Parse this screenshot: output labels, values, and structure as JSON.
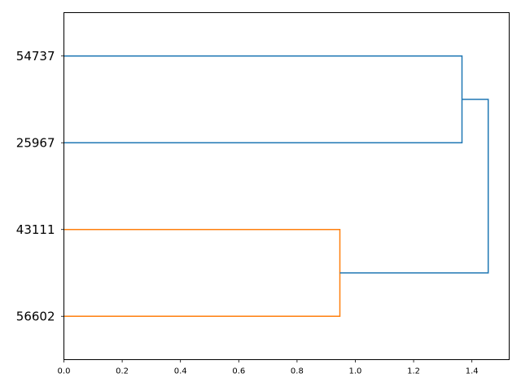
{
  "chart_data": {
    "type": "dendrogram",
    "orientation": "left",
    "leaf_labels": [
      "56602",
      "43111",
      "25967",
      "54737"
    ],
    "xlim": [
      0,
      1.528
    ],
    "ylim": [
      0,
      40
    ],
    "x_ticks": [
      0.0,
      0.2,
      0.4,
      0.6,
      0.8,
      1.0,
      1.2,
      1.4
    ],
    "x_tick_labels": [
      "0.0",
      "0.2",
      "0.4",
      "0.6",
      "0.8",
      "1.0",
      "1.2",
      "1.4"
    ],
    "grid": false,
    "links": [
      {
        "leaves": [
          "56602",
          "43111"
        ],
        "height": 0.947,
        "y": [
          5,
          15
        ],
        "child_heights": [
          0,
          0
        ],
        "color": "#ff7f0e"
      },
      {
        "leaves": [
          "25967",
          "54737"
        ],
        "height": 1.366,
        "y": [
          25,
          35
        ],
        "child_heights": [
          0,
          0
        ],
        "color": "#1f77b4"
      },
      {
        "leaves": [
          "56602",
          "43111",
          "25967",
          "54737"
        ],
        "height": 1.456,
        "y": [
          10,
          30
        ],
        "child_heights": [
          0.947,
          1.366
        ],
        "color": "#1f77b4"
      }
    ]
  }
}
